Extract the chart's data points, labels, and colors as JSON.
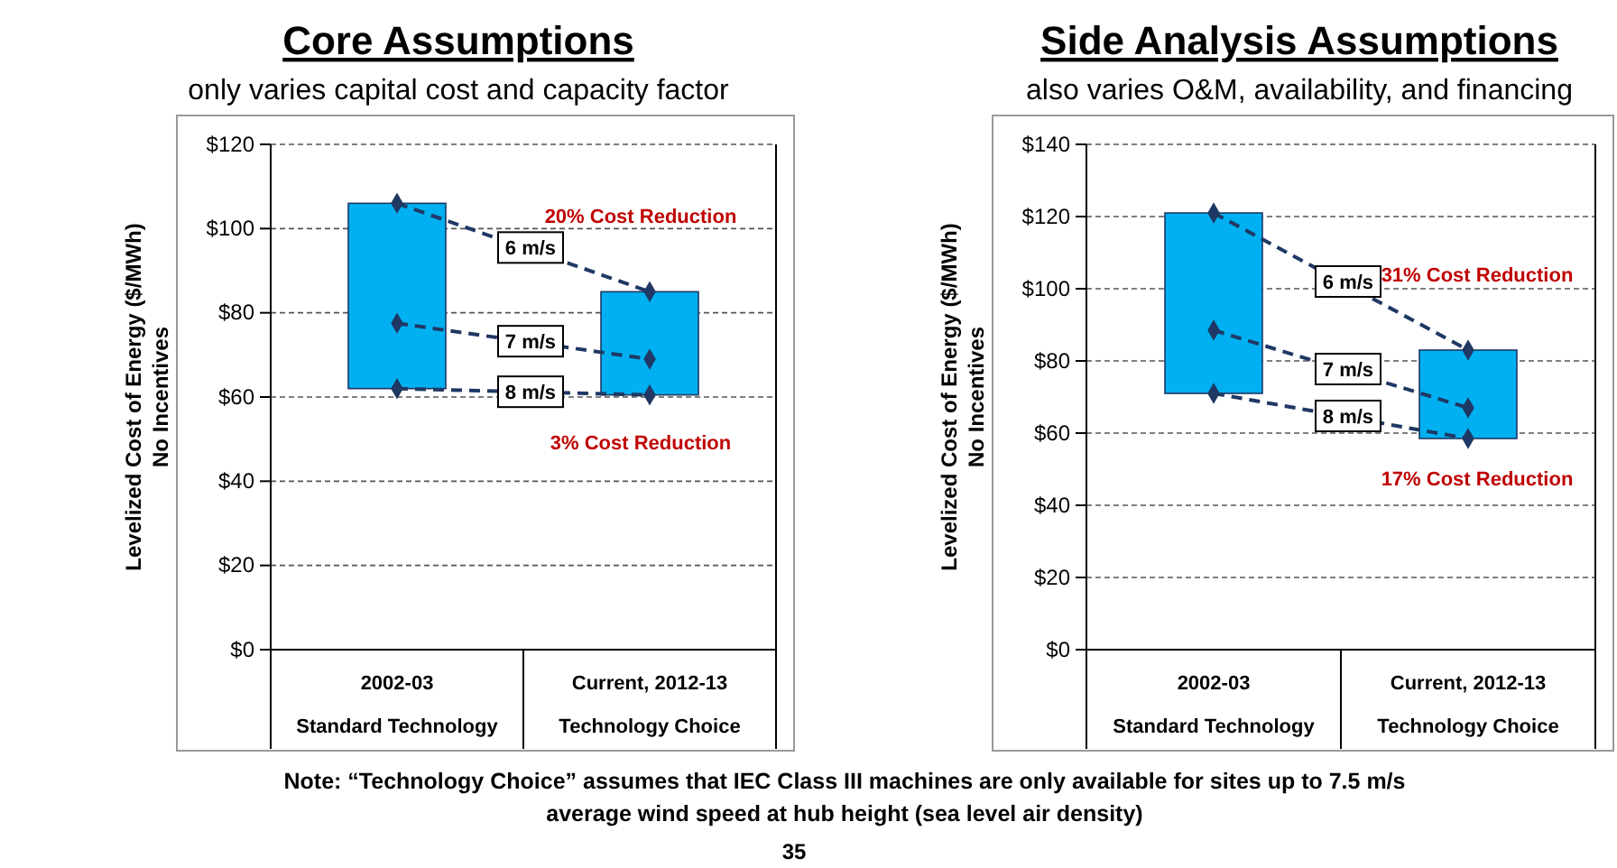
{
  "chart_data": [
    {
      "type": "bar",
      "title": "Core Assumptions",
      "subtitle": "only varies capital cost and capacity factor",
      "ylabel": "Levelized Cost of Energy ($/MWh)\nNo Incentives",
      "categories": [
        "2002-03\nStandard Technology",
        "Current, 2012-13\nTechnology Choice"
      ],
      "ylim": [
        0,
        120
      ],
      "yticks": [
        {
          "value": 0,
          "label": "$0"
        },
        {
          "value": 20,
          "label": "$20"
        },
        {
          "value": 40,
          "label": "$40"
        },
        {
          "value": 60,
          "label": "$60"
        },
        {
          "value": 80,
          "label": "$80"
        },
        {
          "value": 100,
          "label": "$100"
        },
        {
          "value": 120,
          "label": "$120"
        }
      ],
      "grid": "y",
      "marker": "diamond",
      "line_style": "dashed",
      "series": [
        {
          "color": "#00b0f0",
          "base": [
            62,
            60.5
          ],
          "values": [
            44,
            24.5
          ]
        },
        {
          "type": "line",
          "name": "6 m/s",
          "color": "#1f3864",
          "values": [
            106,
            85
          ]
        },
        {
          "type": "line",
          "name": "7 m/s",
          "color": "#1f3864",
          "values": [
            77.5,
            69
          ]
        },
        {
          "type": "line",
          "name": "8 m/s",
          "color": "#1f3864",
          "values": [
            62,
            60.5
          ]
        }
      ],
      "annotations": [
        "20% Cost Reduction",
        "3% Cost Reduction"
      ]
    },
    {
      "type": "bar",
      "title": "Side Analysis Assumptions",
      "subtitle": "also varies O&M, availability, and financing",
      "ylabel": "Levelized Cost of Energy ($/MWh)\nNo Incentives",
      "categories": [
        "2002-03\nStandard Technology",
        "Current, 2012-13\nTechnology Choice"
      ],
      "ylim": [
        0,
        140
      ],
      "yticks": [
        {
          "value": 0,
          "label": "$0"
        },
        {
          "value": 20,
          "label": "$20"
        },
        {
          "value": 40,
          "label": "$40"
        },
        {
          "value": 60,
          "label": "$60"
        },
        {
          "value": 80,
          "label": "$80"
        },
        {
          "value": 100,
          "label": "$100"
        },
        {
          "value": 120,
          "label": "$120"
        },
        {
          "value": 140,
          "label": "$140"
        }
      ],
      "grid": "y",
      "marker": "diamond",
      "line_style": "dashed",
      "series": [
        {
          "color": "#00b0f0",
          "base": [
            71,
            58.5
          ],
          "values": [
            50,
            24.5
          ]
        },
        {
          "type": "line",
          "name": "6 m/s",
          "color": "#1f3864",
          "values": [
            121,
            83
          ]
        },
        {
          "type": "line",
          "name": "7 m/s",
          "color": "#1f3864",
          "values": [
            88.5,
            67
          ]
        },
        {
          "type": "line",
          "name": "8 m/s",
          "color": "#1f3864",
          "values": [
            71,
            58.5
          ]
        }
      ],
      "annotations": [
        "31% Cost Reduction",
        "17% Cost Reduction",
        "Note: “Technology Choice” assumes that IEC Class III machines are only available for sites up to 7.5 m/s\naverage wind speed at hub height (sea level air density)",
        "35"
      ]
    }
  ]
}
